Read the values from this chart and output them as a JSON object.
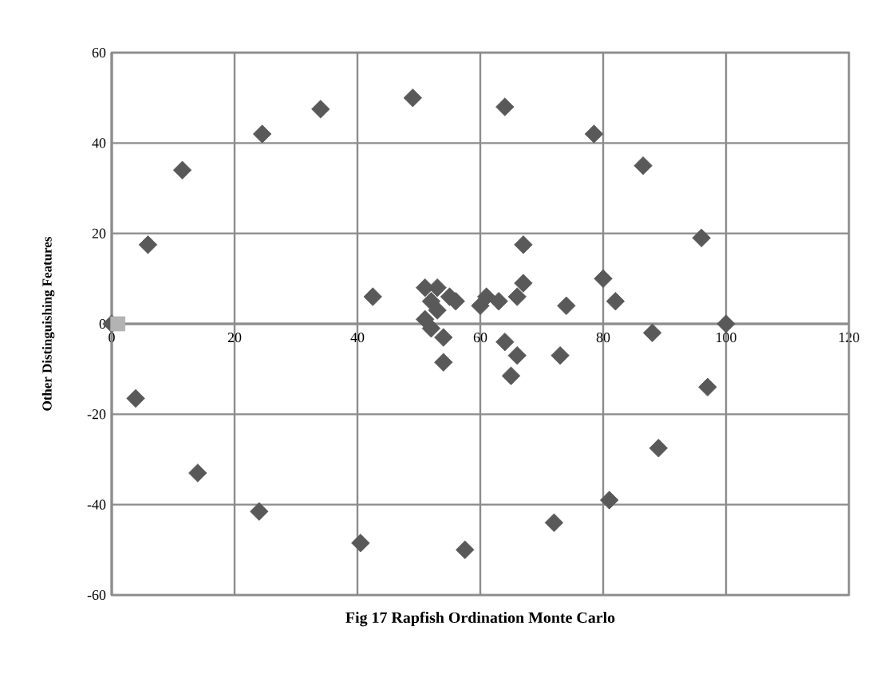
{
  "chart_data": {
    "type": "scatter",
    "title": "Fig 17 Rapfish Ordination Monte Carlo",
    "ylabel": "Other Distinguishing Features",
    "xlim": [
      0,
      120
    ],
    "ylim": [
      -60,
      60
    ],
    "xticks": [
      0,
      20,
      40,
      60,
      80,
      100,
      120
    ],
    "yticks": [
      -60,
      -40,
      -20,
      0,
      20,
      40,
      60
    ],
    "grid": true,
    "series": [
      {
        "color": "#595959",
        "marker": "diamond",
        "x": [
          0,
          3.9,
          5.9,
          11.5,
          14,
          24,
          24.5,
          34,
          40.5,
          42.5,
          49,
          51,
          52,
          53,
          51,
          52,
          53,
          54,
          54,
          56,
          55,
          57.5,
          60,
          61,
          63,
          64,
          64,
          65,
          66,
          66,
          67,
          67,
          72,
          73,
          74,
          78.5,
          80,
          81,
          82,
          86.5,
          88,
          89,
          96,
          97,
          100
        ],
        "values": [
          0,
          -16.5,
          17.5,
          34,
          -33,
          -41.5,
          42,
          47.5,
          -48.5,
          6,
          50,
          8,
          5,
          8,
          1,
          -1,
          3,
          -3,
          -8.5,
          5,
          6,
          -50,
          4,
          6,
          5,
          -4,
          48,
          -11.5,
          6,
          -7,
          9,
          17.5,
          -44,
          -7,
          4,
          42,
          10,
          -39,
          5,
          35,
          -2,
          -27.5,
          19,
          -14,
          0
        ]
      },
      {
        "color": "#b3b3b3",
        "marker": "square",
        "x": [
          1
        ],
        "values": [
          0
        ]
      }
    ]
  }
}
